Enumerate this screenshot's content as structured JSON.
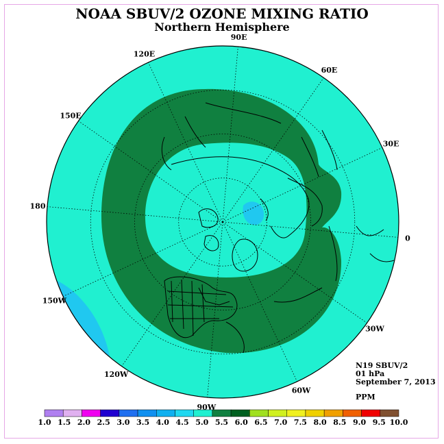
{
  "title": "NOAA SBUV/2 OZONE MIXING RATIO",
  "subtitle": "Northern Hemisphere",
  "info": {
    "instrument": "N19 SBUV/2",
    "level": "01 hPa",
    "date": "September 7, 2013",
    "units": "PPM"
  },
  "longitude_labels": [
    {
      "text": "90E",
      "lon": 90
    },
    {
      "text": "60E",
      "lon": 60
    },
    {
      "text": "30E",
      "lon": 30
    },
    {
      "text": "0",
      "lon": 0
    },
    {
      "text": "30W",
      "lon": -30
    },
    {
      "text": "60W",
      "lon": -60
    },
    {
      "text": "90W",
      "lon": -90
    },
    {
      "text": "120W",
      "lon": -120
    },
    {
      "text": "150W",
      "lon": -150
    },
    {
      "text": "180",
      "lon": 180
    },
    {
      "text": "150E",
      "lon": 150
    },
    {
      "text": "120E",
      "lon": 120
    }
  ],
  "colorbar": {
    "labels": [
      "1.0",
      "1.5",
      "2.0",
      "2.5",
      "3.0",
      "3.5",
      "4.0",
      "4.5",
      "5.0",
      "5.5",
      "6.0",
      "6.5",
      "7.0",
      "7.5",
      "8.0",
      "8.5",
      "9.0",
      "9.5",
      "10.0"
    ],
    "colors": [
      "#b080f0",
      "#e0b0f0",
      "#f000f0",
      "#2000d0",
      "#2070f0",
      "#1090f0",
      "#10b0f0",
      "#20d8f0",
      "#20f0d0",
      "#108040",
      "#006020",
      "#a0e020",
      "#d0f020",
      "#f0f020",
      "#f0d000",
      "#f0a000",
      "#f06000",
      "#f00000",
      "#805030"
    ]
  },
  "colors": {
    "background_field": "#20f0d0",
    "ring": "#108040",
    "low_patch": "#20c8f0",
    "frame": "#e6a6e6"
  }
}
